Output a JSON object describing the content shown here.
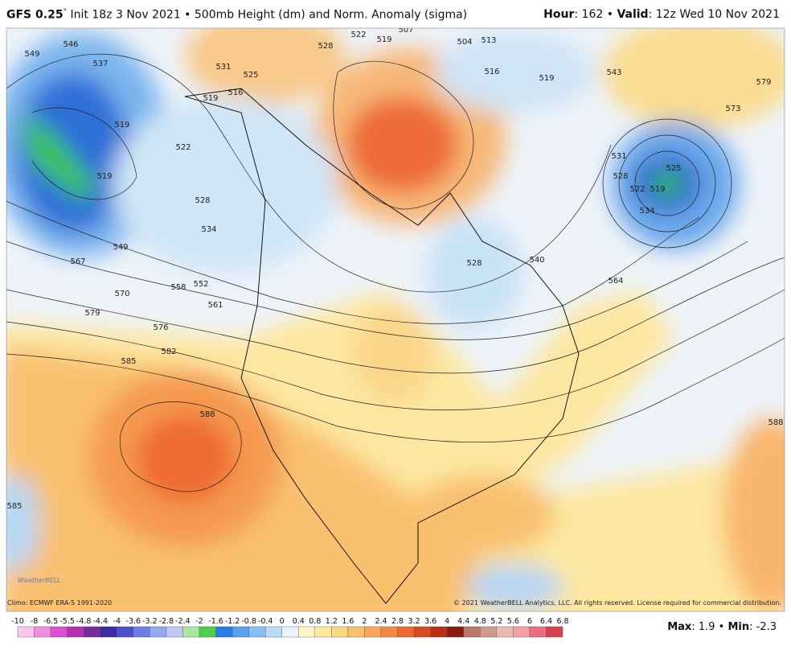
{
  "header": {
    "model": "GFS 0.25",
    "degree": "°",
    "init": "Init 18z 3 Nov 2021 • 500mb Height (dm) and Norm. Anomaly (sigma)",
    "hour_label": "Hour",
    "hour": ": 162 • ",
    "valid_label": "Valid",
    "valid": ": 12z Wed 10 Nov 2021"
  },
  "map": {
    "contour_labels": [
      "546",
      "549",
      "537",
      "519",
      "519",
      "522",
      "519",
      "516",
      "525",
      "531",
      "528",
      "522",
      "519",
      "507",
      "504",
      "513",
      "516",
      "519",
      "543",
      "579",
      "573",
      "531",
      "528",
      "525",
      "522",
      "519",
      "534",
      "528",
      "540",
      "564",
      "528",
      "534",
      "549",
      "567",
      "570",
      "558",
      "552",
      "561",
      "579",
      "576",
      "582",
      "585",
      "588",
      "588",
      "585"
    ],
    "logo": "WeatherBELL"
  },
  "footer": {
    "climo": "Climo: ECMWF ERA-5 1991-2020",
    "copyright": "© 2021 WeatherBELL Analytics, LLC. All rights reserved. License required for commercial distribution."
  },
  "colorbar": {
    "labels": [
      "-10",
      "-8",
      "-6.5",
      "-5.5",
      "-4.8",
      "-4.4",
      "-4",
      "-3.6",
      "-3.2",
      "-2.8",
      "-2.4",
      "-2",
      "-1.6",
      "-1.2",
      "-0.8",
      "-0.4",
      "0",
      "0.4",
      "0.8",
      "1.2",
      "1.6",
      "2",
      "2.4",
      "2.8",
      "3.2",
      "3.6",
      "4",
      "4.4",
      "4.8",
      "5.2",
      "5.6",
      "6",
      "6.4",
      "6.8"
    ]
  },
  "stats": {
    "max_label": "Max",
    "max": ": 1.9 • ",
    "min_label": "Min",
    "min": ": -2.3"
  }
}
